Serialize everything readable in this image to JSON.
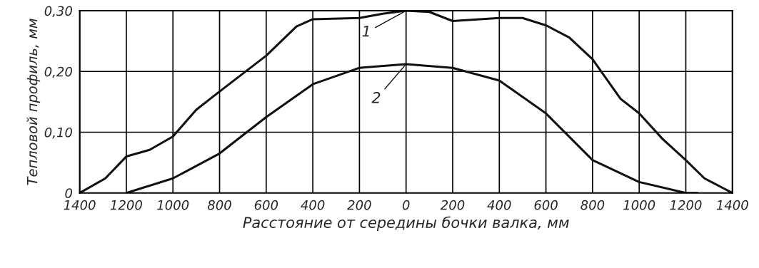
{
  "chart_data": {
    "type": "line",
    "xlabel": "Расстояние от середины бочки валка, мм",
    "ylabel": "Тепловой профиль, мм",
    "series": [
      {
        "name": "1",
        "color": "#111111",
        "x": [
          -1400,
          -1290,
          -1200,
          -1100,
          -1000,
          -900,
          -800,
          -600,
          -470,
          -400,
          -200,
          -100,
          0,
          100,
          200,
          400,
          500,
          600,
          700,
          800,
          920,
          1000,
          1100,
          1200,
          1280,
          1400
        ],
        "values": [
          0,
          0.024,
          0.06,
          0.071,
          0.093,
          0.137,
          0.167,
          0.226,
          0.274,
          0.286,
          0.288,
          0.295,
          0.3,
          0.298,
          0.283,
          0.288,
          0.288,
          0.276,
          0.256,
          0.22,
          0.155,
          0.131,
          0.089,
          0.054,
          0.024,
          0
        ]
      },
      {
        "name": "2",
        "color": "#111111",
        "x": [
          -1200,
          -1000,
          -800,
          -600,
          -400,
          -200,
          0,
          200,
          400,
          600,
          800,
          1000,
          1200,
          1250
        ],
        "values": [
          0,
          0.024,
          0.065,
          0.125,
          0.179,
          0.206,
          0.212,
          0.206,
          0.185,
          0.131,
          0.054,
          0.018,
          0,
          0
        ]
      }
    ],
    "xlim": [
      -1400,
      1400
    ],
    "xticks": [
      {
        "value": -1400,
        "label": "1400"
      },
      {
        "value": -1200,
        "label": "1200"
      },
      {
        "value": -1000,
        "label": "1000"
      },
      {
        "value": -800,
        "label": "800"
      },
      {
        "value": -600,
        "label": "600"
      },
      {
        "value": -400,
        "label": "400"
      },
      {
        "value": -200,
        "label": "200"
      },
      0,
      200,
      400,
      600,
      800,
      1000,
      1200,
      1400
    ],
    "ylim": [
      0,
      0.3
    ],
    "yticks": [
      0,
      {
        "value": 0.1,
        "label": "0,10"
      },
      {
        "value": 0.2,
        "label": "0,20"
      },
      {
        "value": 0.3,
        "label": "0,30"
      }
    ],
    "grid": true
  }
}
